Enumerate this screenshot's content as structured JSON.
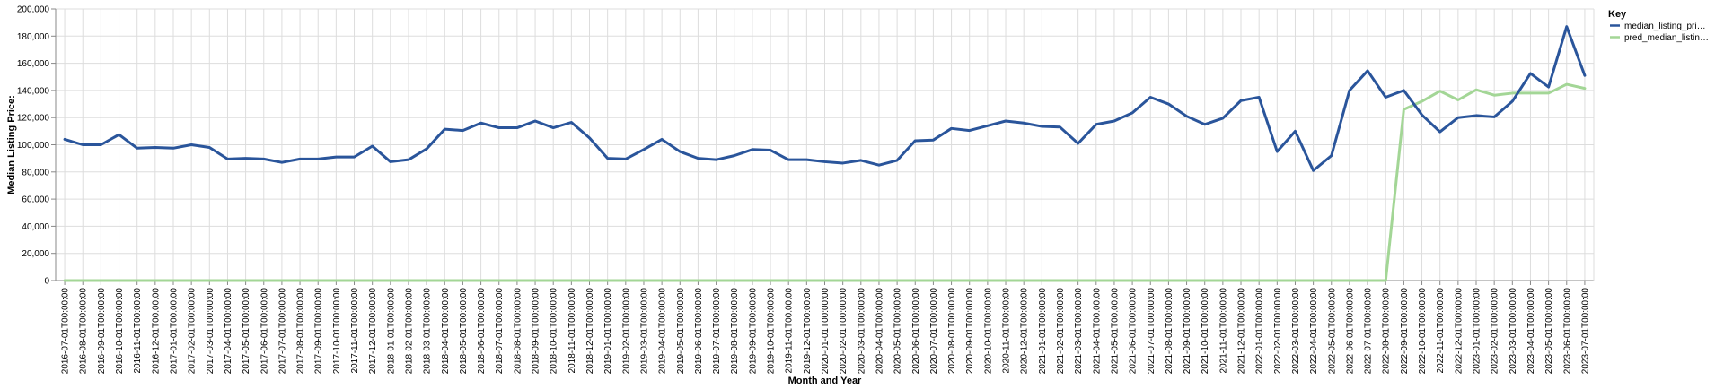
{
  "chart_data": {
    "type": "line",
    "xlabel": "Month and Year",
    "ylabel": "Median Listing Price:",
    "ylim": [
      0,
      200000
    ],
    "yticks": [
      0,
      20000,
      40000,
      60000,
      80000,
      100000,
      120000,
      140000,
      160000,
      180000,
      200000
    ],
    "ytick_labels": [
      "0",
      "20,000",
      "40,000",
      "60,000",
      "80,000",
      "100,000",
      "120,000",
      "140,000",
      "160,000",
      "180,000",
      "200,000"
    ],
    "grid": true,
    "legend": {
      "title": "Key",
      "placement": "top-right"
    },
    "x": [
      "2016-07-01T00:00:00",
      "2016-08-01T00:00:00",
      "2016-09-01T00:00:00",
      "2016-10-01T00:00:00",
      "2016-11-01T00:00:00",
      "2016-12-01T00:00:00",
      "2017-01-01T00:00:00",
      "2017-02-01T00:00:00",
      "2017-03-01T00:00:00",
      "2017-04-01T00:00:00",
      "2017-05-01T00:00:00",
      "2017-06-01T00:00:00",
      "2017-07-01T00:00:00",
      "2017-08-01T00:00:00",
      "2017-09-01T00:00:00",
      "2017-10-01T00:00:00",
      "2017-11-01T00:00:00",
      "2017-12-01T00:00:00",
      "2018-01-01T00:00:00",
      "2018-02-01T00:00:00",
      "2018-03-01T00:00:00",
      "2018-04-01T00:00:00",
      "2018-05-01T00:00:00",
      "2018-06-01T00:00:00",
      "2018-07-01T00:00:00",
      "2018-08-01T00:00:00",
      "2018-09-01T00:00:00",
      "2018-10-01T00:00:00",
      "2018-11-01T00:00:00",
      "2018-12-01T00:00:00",
      "2019-01-01T00:00:00",
      "2019-02-01T00:00:00",
      "2019-03-01T00:00:00",
      "2019-04-01T00:00:00",
      "2019-05-01T00:00:00",
      "2019-06-01T00:00:00",
      "2019-07-01T00:00:00",
      "2019-08-01T00:00:00",
      "2019-09-01T00:00:00",
      "2019-10-01T00:00:00",
      "2019-11-01T00:00:00",
      "2019-12-01T00:00:00",
      "2020-01-01T00:00:00",
      "2020-02-01T00:00:00",
      "2020-03-01T00:00:00",
      "2020-04-01T00:00:00",
      "2020-05-01T00:00:00",
      "2020-06-01T00:00:00",
      "2020-07-01T00:00:00",
      "2020-08-01T00:00:00",
      "2020-09-01T00:00:00",
      "2020-10-01T00:00:00",
      "2020-11-01T00:00:00",
      "2020-12-01T00:00:00",
      "2021-01-01T00:00:00",
      "2021-02-01T00:00:00",
      "2021-03-01T00:00:00",
      "2021-04-01T00:00:00",
      "2021-05-01T00:00:00",
      "2021-06-01T00:00:00",
      "2021-07-01T00:00:00",
      "2021-08-01T00:00:00",
      "2021-09-01T00:00:00",
      "2021-10-01T00:00:00",
      "2021-11-01T00:00:00",
      "2021-12-01T00:00:00",
      "2022-01-01T00:00:00",
      "2022-02-01T00:00:00",
      "2022-03-01T00:00:00",
      "2022-04-01T00:00:00",
      "2022-05-01T00:00:00",
      "2022-06-01T00:00:00",
      "2022-07-01T00:00:00",
      "2022-08-01T00:00:00",
      "2022-09-01T00:00:00",
      "2022-10-01T00:00:00",
      "2022-11-01T00:00:00",
      "2022-12-01T00:00:00",
      "2023-01-01T00:00:00",
      "2023-02-01T00:00:00",
      "2023-03-01T00:00:00",
      "2023-04-01T00:00:00",
      "2023-05-01T00:00:00",
      "2023-06-01T00:00:00",
      "2023-07-01T00:00:00"
    ],
    "series": [
      {
        "name": "median_listing_pri…",
        "color": "#2a559b",
        "values": [
          104000,
          100000,
          100000,
          107500,
          97500,
          98000,
          97500,
          100000,
          98000,
          89500,
          90000,
          89500,
          87000,
          89500,
          89500,
          91000,
          91000,
          99000,
          87500,
          89000,
          97000,
          111500,
          110500,
          116000,
          112500,
          112500,
          117500,
          112500,
          116500,
          105000,
          90000,
          89500,
          96500,
          104000,
          95000,
          90000,
          89000,
          92000,
          96500,
          96000,
          89000,
          89000,
          87500,
          86500,
          88500,
          85000,
          88500,
          103000,
          103500,
          112000,
          110500,
          114000,
          117500,
          116000,
          113500,
          113000,
          101000,
          115000,
          117500,
          123500,
          135000,
          130000,
          121000,
          115000,
          119500,
          132500,
          135000,
          95000,
          110000,
          81000,
          92000,
          140000,
          154500,
          135000,
          140000,
          122000,
          109500,
          120000,
          121500,
          120500,
          132000,
          152500,
          142500,
          187000,
          151000
        ]
      },
      {
        "name": "pred_median_listin…",
        "color": "#a3d696",
        "values": [
          0,
          0,
          0,
          0,
          0,
          0,
          0,
          0,
          0,
          0,
          0,
          0,
          0,
          0,
          0,
          0,
          0,
          0,
          0,
          0,
          0,
          0,
          0,
          0,
          0,
          0,
          0,
          0,
          0,
          0,
          0,
          0,
          0,
          0,
          0,
          0,
          0,
          0,
          0,
          0,
          0,
          0,
          0,
          0,
          0,
          0,
          0,
          0,
          0,
          0,
          0,
          0,
          0,
          0,
          0,
          0,
          0,
          0,
          0,
          0,
          0,
          0,
          0,
          0,
          0,
          0,
          0,
          0,
          0,
          0,
          0,
          0,
          0,
          0,
          126000,
          132000,
          139500,
          133000,
          140500,
          136500,
          138000,
          138000,
          138000,
          144500,
          141500
        ]
      }
    ]
  }
}
